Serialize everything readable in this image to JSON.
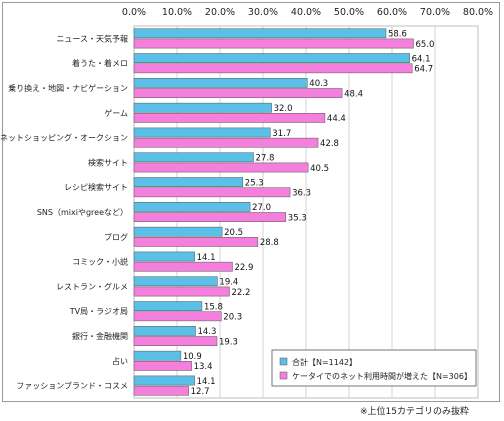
{
  "chart_data": {
    "type": "bar",
    "orientation": "horizontal",
    "title": "",
    "xlabel": "",
    "ylabel": "",
    "xlim": [
      0,
      80
    ],
    "x_ticks": [
      "0.0%",
      "10.0%",
      "20.0%",
      "30.0%",
      "40.0%",
      "50.0%",
      "60.0%",
      "70.0%",
      "80.0%"
    ],
    "grid": true,
    "legend_position": "bottom-right",
    "categories": [
      "ニュース・天気予報",
      "着うた・着メロ",
      "乗り換え・地図・ナビゲーション",
      "ゲーム",
      "ネットショッピング・オークション",
      "検索サイト",
      "レシピ検索サイト",
      "SNS（mixiやgreeなど）",
      "ブログ",
      "コミック・小説",
      "レストラン・グルメ",
      "TV局・ラジオ局",
      "銀行・金融機関",
      "占い",
      "ファッションブランド・コスメ"
    ],
    "series": [
      {
        "name": "合計【N=1142】",
        "color": "#5bc0e8",
        "values": [
          58.6,
          64.1,
          40.3,
          32.0,
          31.7,
          27.8,
          25.3,
          27.0,
          20.5,
          14.1,
          19.4,
          15.8,
          14.3,
          10.9,
          14.1
        ]
      },
      {
        "name": "ケータイでのネット利用時間が増えた【N=306】",
        "color": "#f57fdc",
        "values": [
          65.0,
          64.7,
          48.4,
          44.4,
          42.8,
          40.5,
          36.3,
          35.3,
          28.8,
          22.9,
          22.2,
          20.3,
          19.3,
          13.4,
          12.7
        ]
      }
    ]
  },
  "footnote": "※上位15カテゴリのみ抜粋"
}
